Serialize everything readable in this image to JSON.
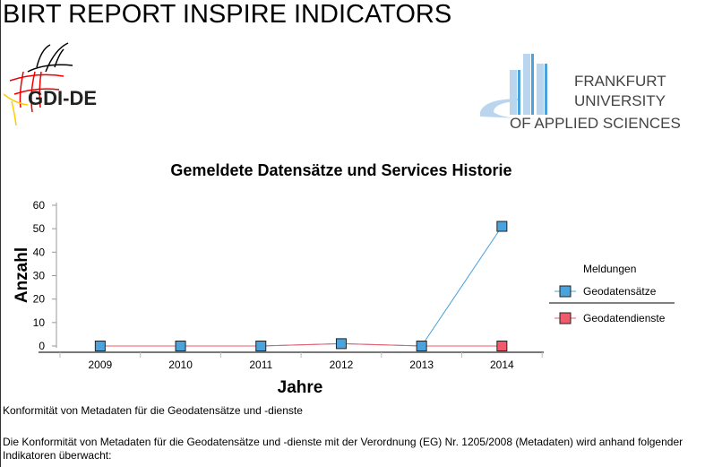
{
  "report_title": "BIRT REPORT INSPIRE INDICATORS",
  "logos": {
    "left": "GDI-DE",
    "right": [
      "FRANKFURT",
      "UNIVERSITY",
      "OF APPLIED SCIENCES"
    ]
  },
  "chart_data": {
    "type": "line",
    "title": "Gemeldete Datensätze und Services Historie",
    "xlabel": "Jahre",
    "ylabel": "Anzahl",
    "categories": [
      "2009",
      "2010",
      "2011",
      "2012",
      "2013",
      "2014"
    ],
    "ylim": [
      0,
      60
    ],
    "yticks": [
      0,
      10,
      20,
      30,
      40,
      50,
      60
    ],
    "legend_title": "Meldungen",
    "legend_position": "right",
    "grid": false,
    "series": [
      {
        "name": "Geodatensätze",
        "values": [
          0,
          0,
          0,
          1,
          0,
          51
        ],
        "color": "#4aa3dd"
      },
      {
        "name": "Geodatendienste",
        "values": [
          0,
          0,
          0,
          1,
          0,
          0
        ],
        "color": "#f05a6a"
      }
    ]
  },
  "paragraphs": [
    "Konformität von Metadaten für die Geodatensätze und -dienste",
    "Die Konformität von Metadaten für die Geodatensätze und -dienste mit der Verordnung (EG) Nr. 1205/2008 (Metadaten) wird anhand folgender Indikatoren überwacht:"
  ]
}
